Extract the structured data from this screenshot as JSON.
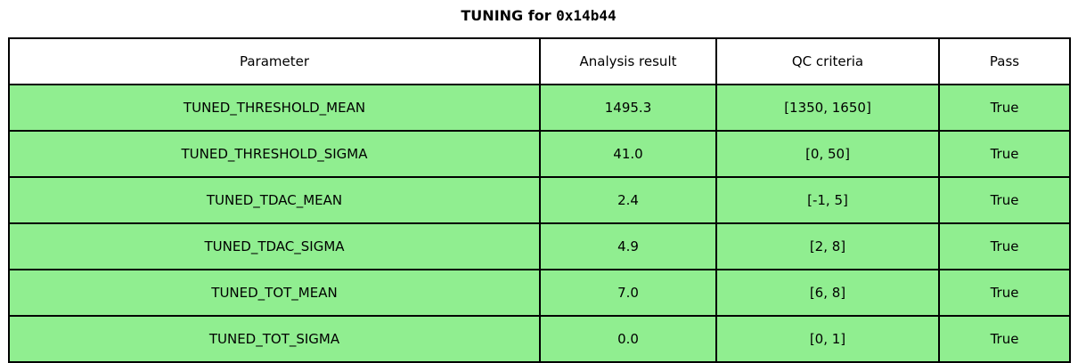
{
  "title": {
    "prefix": "TUNING for ",
    "serial": "0x14b44",
    "full": "TUNING for 0x14b44"
  },
  "chart_data": {
    "type": "table",
    "title": "TUNING for 0x14b44",
    "columns": [
      "Parameter",
      "Analysis result",
      "QC criteria",
      "Pass"
    ],
    "rows": [
      [
        "TUNED_THRESHOLD_MEAN",
        "1495.3",
        "[1350, 1650]",
        "True"
      ],
      [
        "TUNED_THRESHOLD_SIGMA",
        "41.0",
        "[0, 50]",
        "True"
      ],
      [
        "TUNED_TDAC_MEAN",
        "2.4",
        "[-1, 5]",
        "True"
      ],
      [
        "TUNED_TDAC_SIGMA",
        "4.9",
        "[2, 8]",
        "True"
      ],
      [
        "TUNED_TOT_MEAN",
        "7.0",
        "[6, 8]",
        "True"
      ],
      [
        "TUNED_TOT_SIGMA",
        "0.0",
        "[0, 1]",
        "True"
      ]
    ],
    "layout": {
      "header_background": "#ffffff",
      "pass_row_background": "#90ee90",
      "border_color": "#000000",
      "text_color": "#000000"
    }
  }
}
